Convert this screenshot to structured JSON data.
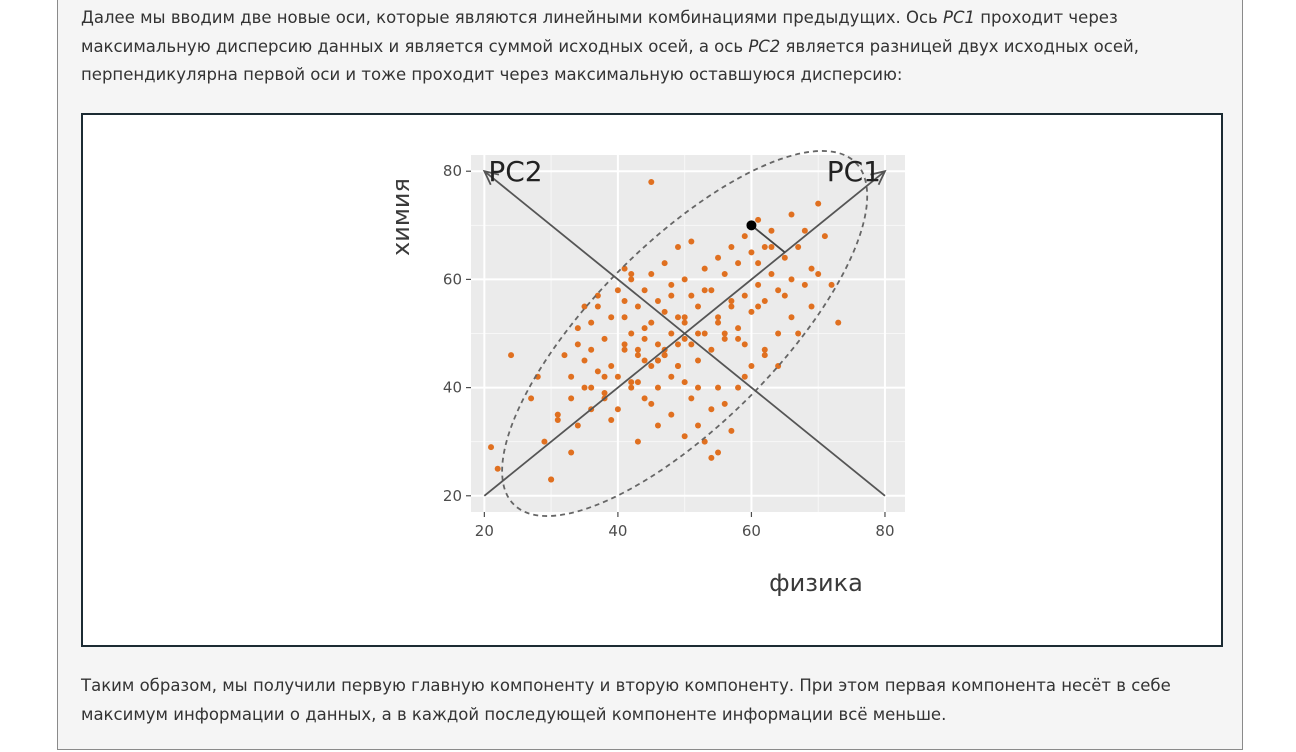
{
  "paragraphs": {
    "intro": {
      "t1": "Далее мы вводим две новые оси, которые являются линейными комбинациями предыдущих. Ось ",
      "pc1": "PC1",
      "t2": " проходит через максимальную дисперсию данных и является суммой исходных осей, а ось ",
      "pc2": "PC2",
      "t3": " является разницей двух исходных осей, перпендикулярна первой оси и тоже проходит через максимальную оставшуюся дисперсию:"
    },
    "outro": "Таким образом, мы получили первую главную компоненту и вторую компоненту. При этом первая компонента несёт в себе максимум информации о данных, а в каждой последующей компоненте информации всё меньше."
  },
  "colors": {
    "points": "#e07020",
    "panel": "#ebebeb",
    "axes_lines": "#555555"
  },
  "chart_data": {
    "type": "scatter",
    "title": "",
    "xlabel": "физика",
    "ylabel": "химия",
    "xlim": [
      18,
      83
    ],
    "ylim": [
      17,
      83
    ],
    "x_ticks": [
      20,
      40,
      60,
      80
    ],
    "y_ticks": [
      20,
      40,
      60,
      80
    ],
    "grid": true,
    "annotations": {
      "pc1_label": "PC1",
      "pc2_label": "PC2",
      "pc1_line": [
        [
          20,
          20
        ],
        [
          80,
          80
        ]
      ],
      "pc2_line": [
        [
          20,
          80
        ],
        [
          80,
          20
        ]
      ],
      "highlight_point": [
        60,
        70
      ],
      "projection_line": [
        [
          60,
          70
        ],
        [
          65,
          65
        ]
      ],
      "ellipse": {
        "center": [
          50,
          50
        ],
        "semi_major": 40,
        "semi_minor": 15,
        "angle_deg": 45
      }
    },
    "points": {
      "x": [
        21,
        22,
        24,
        27,
        29,
        30,
        31,
        32,
        33,
        34,
        34,
        35,
        35,
        36,
        36,
        37,
        37,
        38,
        38,
        39,
        39,
        40,
        40,
        41,
        41,
        42,
        42,
        42,
        43,
        43,
        44,
        44,
        44,
        45,
        45,
        45,
        46,
        46,
        46,
        47,
        47,
        47,
        48,
        48,
        48,
        49,
        49,
        49,
        50,
        50,
        50,
        51,
        51,
        51,
        52,
        52,
        53,
        53,
        54,
        54,
        55,
        55,
        56,
        56,
        57,
        57,
        58,
        58,
        59,
        59,
        60,
        60,
        61,
        61,
        62,
        62,
        63,
        63,
        64,
        65,
        66,
        66,
        67,
        68,
        69,
        70,
        71,
        72,
        73,
        35,
        36,
        38,
        40,
        42,
        43,
        45,
        46,
        48,
        50,
        52,
        54,
        56,
        58,
        60,
        62,
        64,
        66,
        45,
        28,
        33,
        37,
        41,
        44,
        47,
        49,
        52,
        55,
        58,
        61,
        65,
        68,
        70,
        30,
        31,
        33,
        36,
        39,
        41,
        43,
        46,
        49,
        51,
        53,
        55,
        57,
        59,
        62,
        64,
        67,
        69,
        41,
        43,
        47,
        52,
        56,
        38,
        44,
        50,
        54,
        59,
        48,
        53,
        57,
        34,
        42,
        46,
        50,
        55,
        61,
        63
      ],
      "y": [
        29,
        25,
        46,
        38,
        30,
        23,
        35,
        46,
        42,
        33,
        48,
        40,
        55,
        36,
        52,
        43,
        57,
        38,
        49,
        44,
        53,
        42,
        58,
        47,
        56,
        40,
        50,
        60,
        46,
        55,
        38,
        49,
        58,
        44,
        52,
        61,
        40,
        48,
        56,
        46,
        54,
        63,
        42,
        50,
        59,
        44,
        53,
        66,
        41,
        52,
        60,
        48,
        57,
        67,
        45,
        55,
        50,
        62,
        47,
        58,
        53,
        64,
        49,
        61,
        55,
        66,
        51,
        63,
        57,
        68,
        54,
        65,
        59,
        71,
        56,
        66,
        61,
        69,
        58,
        64,
        60,
        72,
        66,
        69,
        62,
        74,
        68,
        59,
        52,
        45,
        47,
        42,
        36,
        41,
        30,
        37,
        33,
        35,
        31,
        33,
        36,
        37,
        40,
        44,
        47,
        50,
        53,
        78,
        42,
        38,
        55,
        53,
        51,
        47,
        44,
        50,
        52,
        49,
        55,
        57,
        59,
        61,
        23,
        34,
        28,
        40,
        34,
        48,
        41,
        45,
        48,
        38,
        30,
        28,
        32,
        42,
        46,
        44,
        50,
        55,
        62,
        47,
        46,
        40,
        50,
        39,
        45,
        53,
        27,
        48,
        57,
        58,
        56,
        51,
        61,
        45,
        49,
        40,
        63,
        66
      ]
    }
  }
}
